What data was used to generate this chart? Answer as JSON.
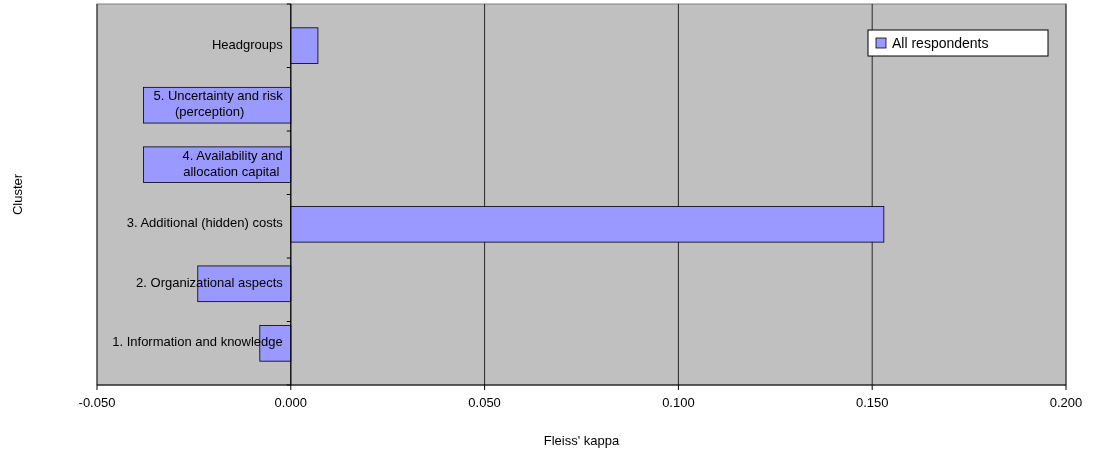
{
  "chart_data": {
    "type": "bar",
    "orientation": "horizontal",
    "xlabel": "Fleiss' kappa",
    "ylabel": "Cluster",
    "categories": [
      "Headgroups",
      "5. Uncertainty and risk (perception)",
      "4. Availability and allocation capital",
      "3. Additional (hidden) costs",
      "2. Organizational aspects",
      "1. Information and knowledge"
    ],
    "series": [
      {
        "name": "All respondents",
        "color": "#9999ff",
        "values": [
          0.007,
          -0.038,
          -0.038,
          0.153,
          -0.024,
          -0.008
        ]
      }
    ],
    "xlim": [
      -0.05,
      0.2
    ],
    "xticks": [
      {
        "value": -0.05,
        "label": "-0.050"
      },
      {
        "value": 0,
        "label": "0.000"
      },
      {
        "value": 0.05,
        "label": "0.050"
      },
      {
        "value": 0.1,
        "label": "0.100"
      },
      {
        "value": 0.15,
        "label": "0.150"
      },
      {
        "value": 0.2,
        "label": "0.200"
      }
    ],
    "grid": "x",
    "legend": "top right"
  }
}
